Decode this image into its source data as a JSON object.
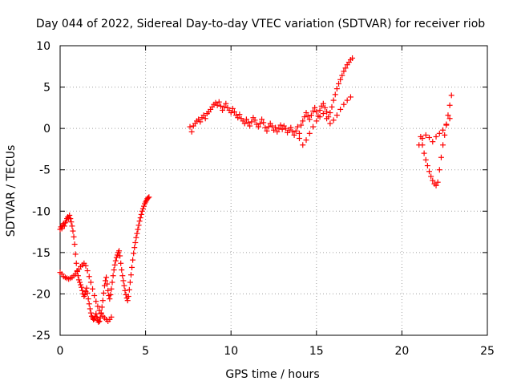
{
  "chart_data": {
    "type": "scatter",
    "title": "Day 044 of 2022, Sidereal Day-to-day VTEC variation (SDTVAR) for receiver riob",
    "xlabel": "GPS time / hours",
    "ylabel": "SDTVAR / TECUs",
    "xlim": [
      0,
      25
    ],
    "ylim": [
      -25,
      10
    ],
    "xticks": [
      0,
      5,
      10,
      15,
      20,
      25
    ],
    "yticks": [
      -25,
      -20,
      -15,
      -10,
      -5,
      0,
      5,
      10
    ],
    "grid": true,
    "marker": "+",
    "series_color": "#ff0000",
    "series": [
      {
        "segment": "early",
        "x": [
          0.0,
          0.05,
          0.1,
          0.15,
          0.2,
          0.25,
          0.3,
          0.35,
          0.4,
          0.45,
          0.5,
          0.55,
          0.6,
          0.65,
          0.7,
          0.75,
          0.8,
          0.85,
          0.9,
          0.95,
          1.0,
          1.05,
          1.1,
          1.15,
          1.2,
          1.25,
          1.3,
          1.35,
          1.4,
          1.45,
          1.5,
          1.55,
          1.6,
          1.65,
          1.7,
          1.75,
          1.8,
          1.85,
          1.9,
          1.95,
          2.0,
          2.05,
          2.1,
          2.15,
          2.2,
          2.25,
          2.3,
          2.35,
          2.4,
          2.45,
          2.5,
          2.55,
          2.6,
          2.65,
          2.7,
          2.75,
          2.8,
          2.85,
          2.9,
          2.95,
          3.0,
          3.05,
          3.1,
          3.15,
          3.2,
          3.25,
          3.3,
          3.35,
          3.4,
          3.45,
          3.5,
          3.55,
          3.6,
          3.65,
          3.7,
          3.75,
          3.8,
          3.85,
          3.9,
          3.95,
          4.0,
          4.05,
          4.1,
          4.15,
          4.2,
          4.25,
          4.3,
          4.35,
          4.4,
          4.45,
          4.5,
          4.55,
          4.6,
          4.65,
          4.7,
          4.75,
          4.8,
          4.85,
          4.9,
          4.95,
          5.0,
          5.05,
          5.1,
          5.15,
          5.2
        ],
        "y": [
          -12.2,
          -11.9,
          -12.1,
          -11.7,
          -11.5,
          -11.8,
          -11.4,
          -11.2,
          -10.9,
          -10.7,
          -10.8,
          -10.5,
          -10.9,
          -11.3,
          -11.8,
          -12.4,
          -13.1,
          -14.0,
          -15.2,
          -16.3,
          -17.2,
          -17.8,
          -18.3,
          -18.6,
          -18.9,
          -19.2,
          -19.6,
          -20.0,
          -20.3,
          -20.1,
          -19.7,
          -19.3,
          -19.9,
          -20.6,
          -21.2,
          -21.8,
          -22.3,
          -22.7,
          -22.9,
          -23.1,
          -23.0,
          -22.7,
          -22.4,
          -22.8,
          -23.2,
          -23.4,
          -23.3,
          -22.9,
          -22.3,
          -21.6,
          -20.8,
          -19.9,
          -19.0,
          -18.4,
          -18.0,
          -18.8,
          -19.6,
          -20.2,
          -20.6,
          -20.1,
          -19.4,
          -18.6,
          -17.8,
          -17.1,
          -16.5,
          -16.0,
          -15.6,
          -15.3,
          -15.0,
          -14.8,
          -15.4,
          -16.3,
          -17.1,
          -17.8,
          -18.4,
          -19.0,
          -19.6,
          -20.1,
          -20.5,
          -20.8,
          -20.3,
          -19.5,
          -18.6,
          -17.7,
          -16.8,
          -15.9,
          -15.1,
          -14.4,
          -13.8,
          -13.2,
          -12.7,
          -12.2,
          -11.7,
          -11.2,
          -10.8,
          -10.4,
          -10.0,
          -9.7,
          -9.4,
          -9.1,
          -8.9,
          -8.7,
          -8.5,
          -8.4,
          -8.3
        ]
      },
      {
        "segment": "early-lower-branch",
        "x": [
          0.0,
          0.1,
          0.2,
          0.3,
          0.4,
          0.5,
          0.6,
          0.7,
          0.8,
          0.9,
          1.0,
          1.1,
          1.2,
          1.3,
          1.4,
          1.5,
          1.6,
          1.7,
          1.8,
          1.9,
          2.0,
          2.1,
          2.2,
          2.3,
          2.4,
          2.5,
          2.6,
          2.7,
          2.8,
          2.9,
          3.0
        ],
        "y": [
          -17.4,
          -17.6,
          -17.9,
          -18.0,
          -18.1,
          -18.2,
          -18.1,
          -18.0,
          -17.8,
          -17.6,
          -17.3,
          -17.0,
          -16.7,
          -16.5,
          -16.3,
          -16.6,
          -17.2,
          -17.9,
          -18.6,
          -19.4,
          -20.2,
          -20.9,
          -21.5,
          -22.0,
          -22.4,
          -22.7,
          -22.9,
          -23.1,
          -23.3,
          -23.1,
          -22.8
        ]
      },
      {
        "segment": "midday",
        "x": [
          7.6,
          7.7,
          7.8,
          7.9,
          8.0,
          8.1,
          8.2,
          8.3,
          8.4,
          8.5,
          8.6,
          8.7,
          8.8,
          8.9,
          9.0,
          9.1,
          9.2,
          9.3,
          9.4,
          9.5,
          9.6,
          9.7,
          9.8,
          9.9,
          10.0,
          10.1,
          10.2,
          10.3,
          10.4,
          10.5,
          10.6,
          10.7,
          10.8,
          10.9,
          11.0,
          11.1,
          11.2,
          11.3,
          11.4,
          11.5,
          11.6,
          11.7,
          11.8,
          11.9,
          12.0,
          12.1,
          12.2,
          12.3,
          12.4,
          12.5,
          12.6,
          12.7,
          12.8,
          12.9,
          13.0,
          13.1,
          13.2,
          13.3,
          13.4,
          13.5,
          13.6,
          13.7,
          13.8,
          13.9,
          14.0,
          14.1,
          14.2,
          14.3,
          14.4,
          14.5,
          14.6,
          14.7,
          14.8,
          14.9,
          15.0,
          15.1,
          15.2,
          15.3,
          15.4,
          15.5,
          15.6,
          15.7,
          15.8,
          15.9,
          16.0,
          16.1,
          16.2,
          16.3,
          16.4,
          16.5,
          16.6,
          16.7,
          16.8,
          16.9,
          17.0,
          17.1
        ],
        "y": [
          0.2,
          -0.4,
          0.3,
          0.6,
          0.9,
          1.1,
          0.8,
          1.3,
          1.6,
          1.2,
          1.8,
          2.0,
          2.3,
          2.6,
          2.9,
          3.1,
          2.8,
          3.2,
          2.7,
          2.2,
          2.6,
          3.0,
          2.5,
          2.2,
          1.9,
          2.4,
          2.0,
          1.6,
          1.3,
          1.7,
          1.2,
          0.9,
          0.6,
          1.1,
          0.7,
          0.3,
          0.8,
          1.3,
          1.0,
          0.5,
          0.2,
          0.6,
          1.1,
          0.7,
          0.1,
          -0.3,
          0.2,
          0.6,
          0.3,
          -0.2,
          0.1,
          -0.4,
          0.0,
          0.4,
          -0.1,
          0.3,
          0.0,
          -0.5,
          -0.2,
          0.1,
          -0.4,
          -0.8,
          -0.3,
          0.2,
          -0.6,
          0.4,
          0.9,
          1.4,
          1.9,
          1.5,
          1.1,
          1.6,
          2.1,
          2.5,
          2.0,
          1.5,
          2.2,
          2.7,
          3.0,
          2.5,
          2.0,
          1.4,
          1.9,
          2.6,
          3.4,
          4.1,
          4.8,
          5.4,
          5.9,
          6.4,
          6.9,
          7.3,
          7.7,
          8.0,
          8.3,
          8.5
        ]
      },
      {
        "segment": "midday-lower-branch",
        "x": [
          14.0,
          14.2,
          14.4,
          14.6,
          14.8,
          15.0,
          15.2,
          15.4,
          15.6,
          15.8,
          16.0,
          16.2,
          16.4,
          16.6,
          16.8,
          17.0
        ],
        "y": [
          -1.2,
          -2.0,
          -1.4,
          -0.6,
          0.2,
          0.9,
          1.4,
          1.8,
          1.2,
          0.6,
          1.0,
          1.6,
          2.3,
          2.9,
          3.4,
          3.8
        ]
      },
      {
        "segment": "late",
        "x": [
          21.1,
          21.2,
          21.3,
          21.4,
          21.5,
          21.6,
          21.7,
          21.8,
          21.9,
          22.0,
          22.1,
          22.2,
          22.3,
          22.4,
          22.5,
          22.6,
          22.7,
          22.8,
          22.9
        ],
        "y": [
          -1.0,
          -2.0,
          -3.0,
          -3.8,
          -4.5,
          -5.2,
          -5.8,
          -6.3,
          -6.7,
          -6.9,
          -6.5,
          -5.0,
          -3.5,
          -2.0,
          -0.8,
          0.4,
          1.6,
          2.8,
          4.0
        ]
      },
      {
        "segment": "late-upper-branch",
        "x": [
          21.0,
          21.2,
          21.4,
          21.6,
          21.8,
          22.0,
          22.2,
          22.4,
          22.6,
          22.8
        ],
        "y": [
          -2.0,
          -1.2,
          -0.8,
          -1.1,
          -1.6,
          -1.0,
          -0.6,
          -0.2,
          0.5,
          1.2
        ]
      }
    ]
  }
}
